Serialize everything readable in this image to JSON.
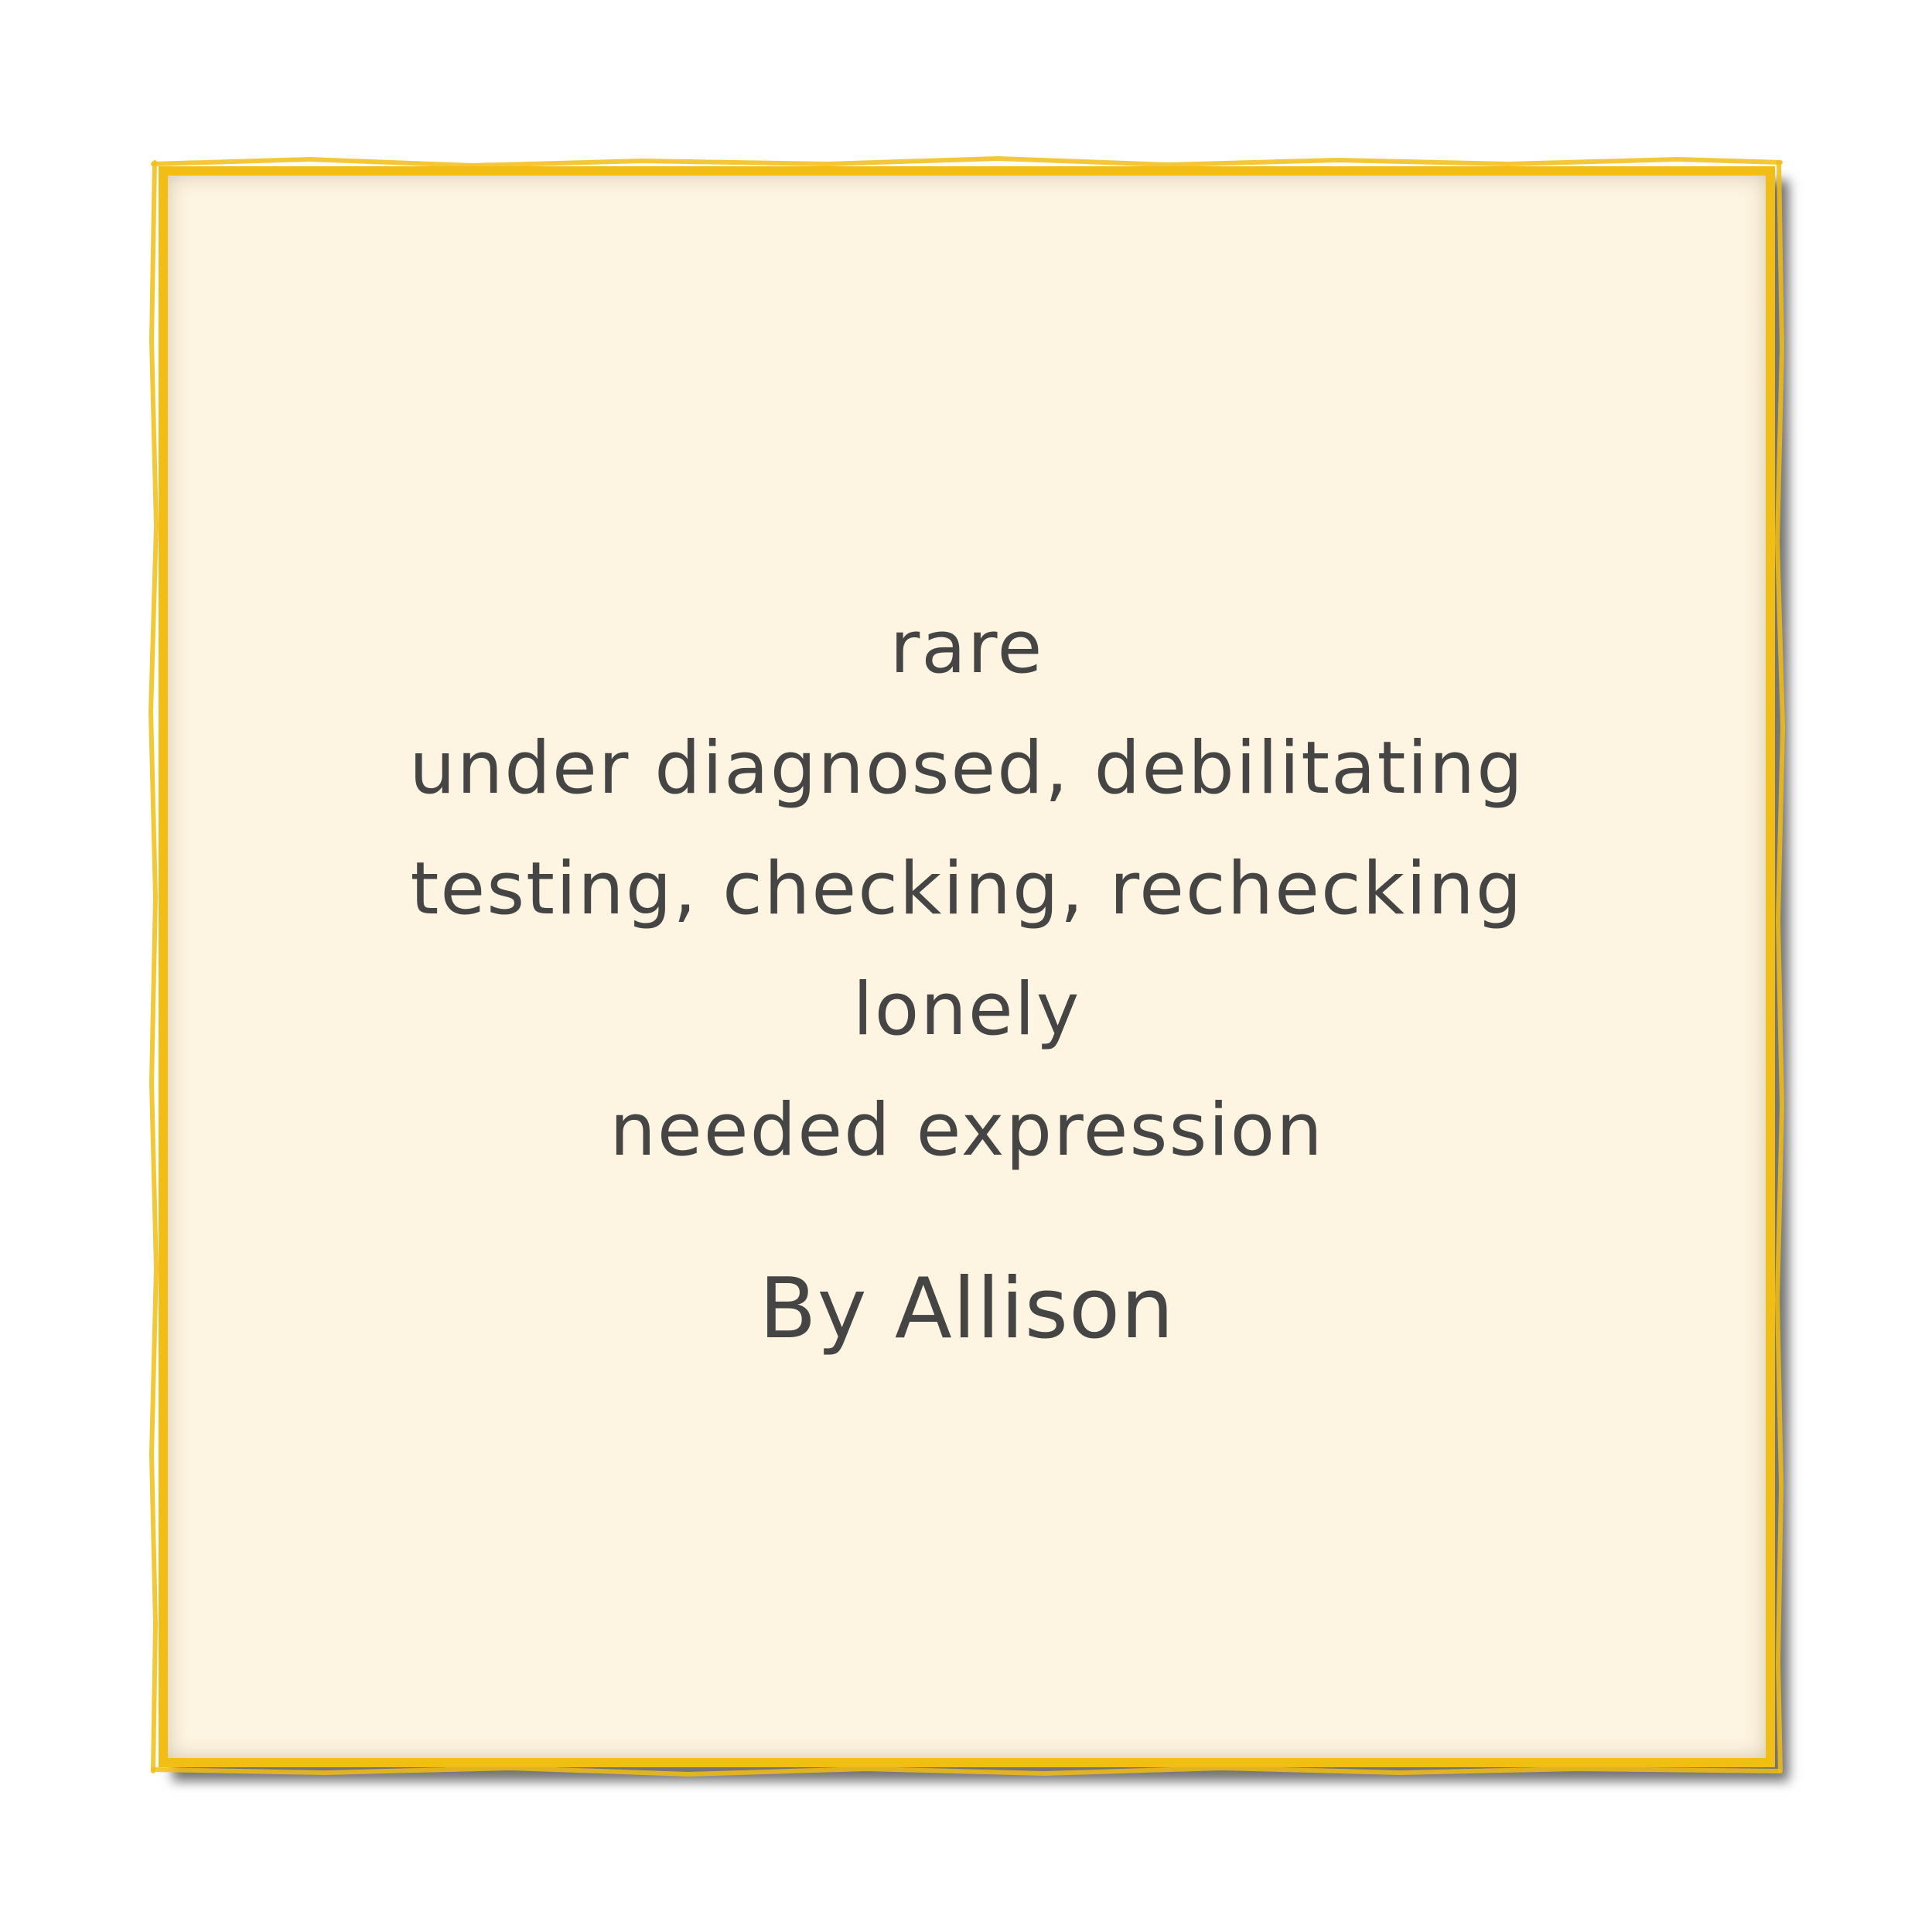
{
  "poem": {
    "lines": [
      "rare",
      "under diagnosed, debilitating",
      "testing, checking, rechecking",
      "lonely",
      "needed expression"
    ],
    "byline": "By Allison"
  },
  "colors": {
    "frame": "#f2bd14",
    "card_background": "#fdf4e1",
    "text": "#454545",
    "shadow": "#555555"
  }
}
